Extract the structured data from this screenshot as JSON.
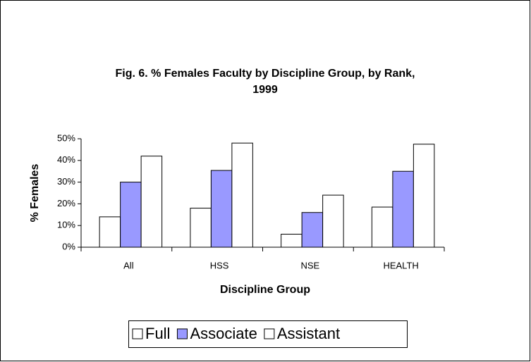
{
  "chart_data": {
    "type": "bar",
    "title_lines": [
      "Fig. 6. % Females Faculty by Discipline Group, by Rank,",
      "1999"
    ],
    "x_label": "Discipline Group",
    "y_label": "% Females",
    "categories": [
      "All",
      "HSS",
      "NSE",
      "HEALTH"
    ],
    "series": [
      {
        "name": "Full",
        "color": "#ffffff",
        "values": [
          14,
          18,
          6,
          18.5
        ]
      },
      {
        "name": "Associate",
        "color": "#9999ff",
        "values": [
          30,
          35.4,
          16,
          35
        ]
      },
      {
        "name": "Assistant",
        "color": "#ffffff",
        "values": [
          42,
          48,
          24,
          47.5
        ]
      }
    ],
    "ylim": [
      0,
      50
    ],
    "yticks": [
      {
        "value": 0,
        "label": "0%"
      },
      {
        "value": 10,
        "label": "10%"
      },
      {
        "value": 20,
        "label": "20%"
      },
      {
        "value": 30,
        "label": "30%"
      },
      {
        "value": 40,
        "label": "40%"
      },
      {
        "value": 50,
        "label": "50%"
      }
    ],
    "grid": false,
    "legend": "bottom"
  }
}
